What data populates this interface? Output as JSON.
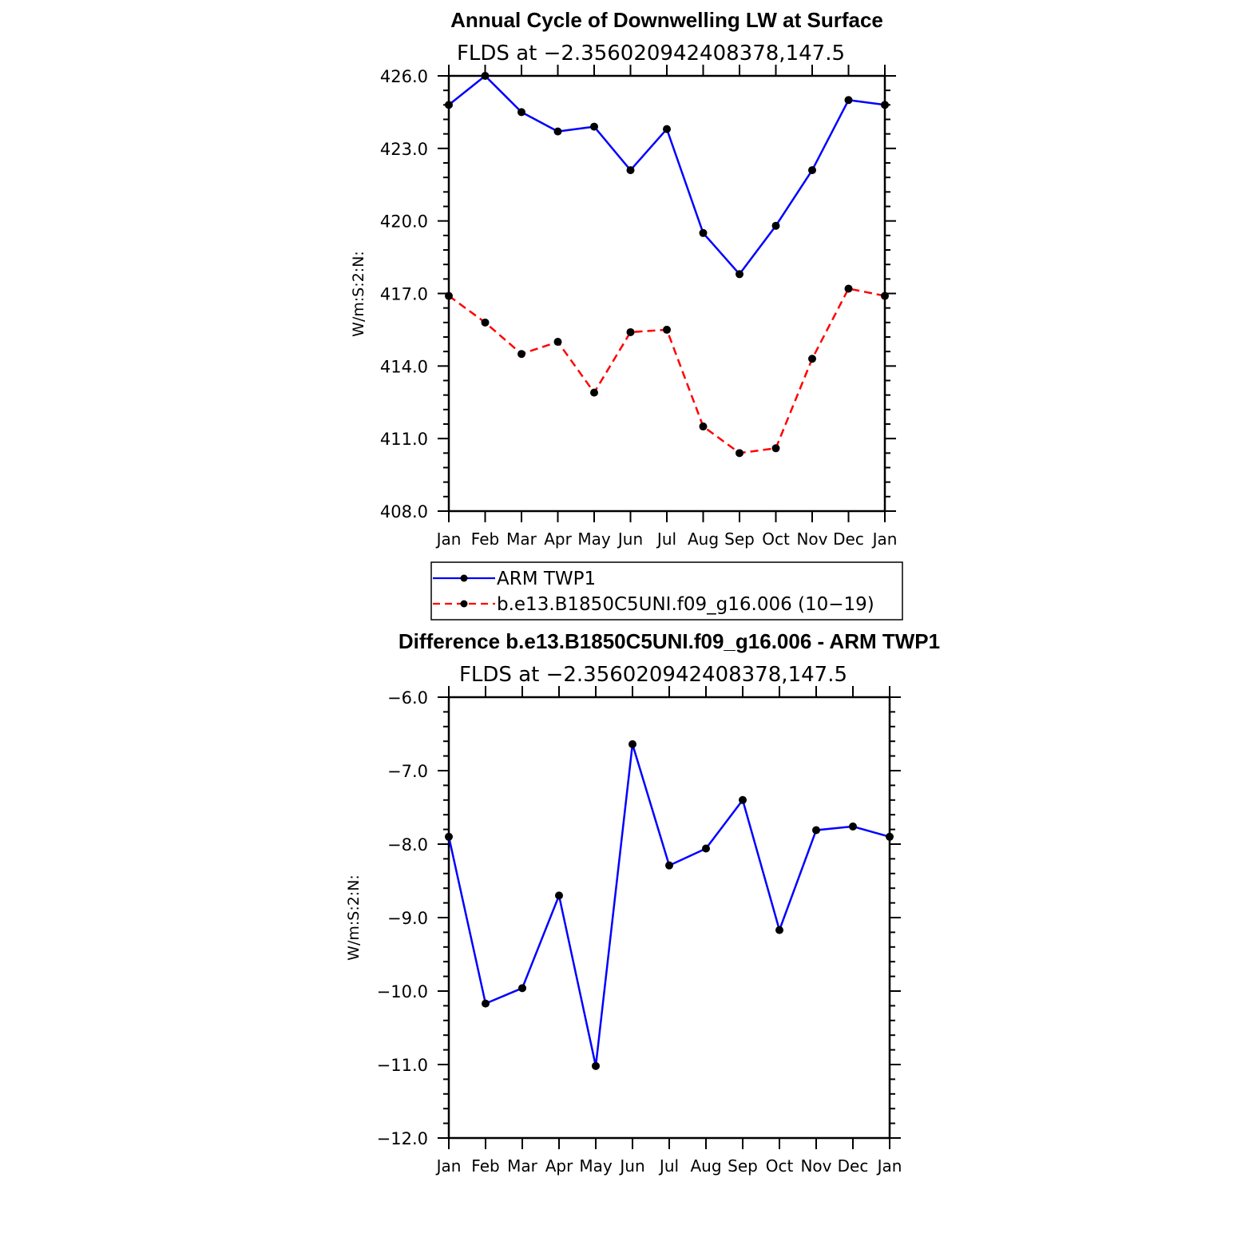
{
  "chart_data": [
    {
      "type": "line",
      "title": "Annual Cycle of Downwelling LW at Surface",
      "subtitle": "FLDS at −2.356020942408378,147.5",
      "ylabel": "W/m:S:2:N:",
      "xlabel": "",
      "categories": [
        "Jan",
        "Feb",
        "Mar",
        "Apr",
        "May",
        "Jun",
        "Jul",
        "Aug",
        "Sep",
        "Oct",
        "Nov",
        "Dec",
        "Jan"
      ],
      "ylim": [
        408.0,
        426.0
      ],
      "yticks": [
        408.0,
        411.0,
        414.0,
        417.0,
        420.0,
        423.0,
        426.0
      ],
      "ytick_labels": [
        "408.0",
        "411.0",
        "414.0",
        "417.0",
        "420.0",
        "423.0",
        "426.0"
      ],
      "grid": false,
      "legend_position": "bottom",
      "series": [
        {
          "name": "ARM TWP1",
          "color": "#0000ff",
          "dash": "solid",
          "values": [
            424.8,
            426.0,
            424.5,
            423.7,
            423.9,
            422.1,
            423.8,
            419.5,
            417.8,
            419.8,
            422.1,
            425.0,
            424.8
          ]
        },
        {
          "name": "b.e13.B1850C5UNI.f09_g16.006 (10−19)",
          "color": "#ff0000",
          "dash": "dashed",
          "values": [
            416.9,
            415.8,
            414.5,
            415.0,
            412.9,
            415.4,
            415.5,
            411.5,
            410.4,
            410.6,
            414.3,
            417.2,
            416.9
          ]
        }
      ]
    },
    {
      "type": "line",
      "title": "Difference b.e13.B1850C5UNI.f09_g16.006 - ARM TWP1",
      "subtitle": "FLDS at −2.356020942408378,147.5",
      "ylabel": "W/m:S:2:N:",
      "xlabel": "",
      "categories": [
        "Jan",
        "Feb",
        "Mar",
        "Apr",
        "May",
        "Jun",
        "Jul",
        "Aug",
        "Sep",
        "Oct",
        "Nov",
        "Dec",
        "Jan"
      ],
      "ylim": [
        -12.0,
        -6.0
      ],
      "yticks": [
        -12.0,
        -11.0,
        -10.0,
        -9.0,
        -8.0,
        -7.0,
        -6.0
      ],
      "ytick_labels": [
        "−12.0",
        "−11.0",
        "−10.0",
        "−9.0",
        "−8.0",
        "−7.0",
        "−6.0"
      ],
      "grid": false,
      "series": [
        {
          "color": "#0000ff",
          "dash": "solid",
          "values": [
            -7.9,
            -10.17,
            -9.96,
            -8.7,
            -11.02,
            -6.64,
            -8.29,
            -8.06,
            -7.4,
            -9.17,
            -7.81,
            -7.76,
            -7.9
          ]
        }
      ]
    }
  ]
}
